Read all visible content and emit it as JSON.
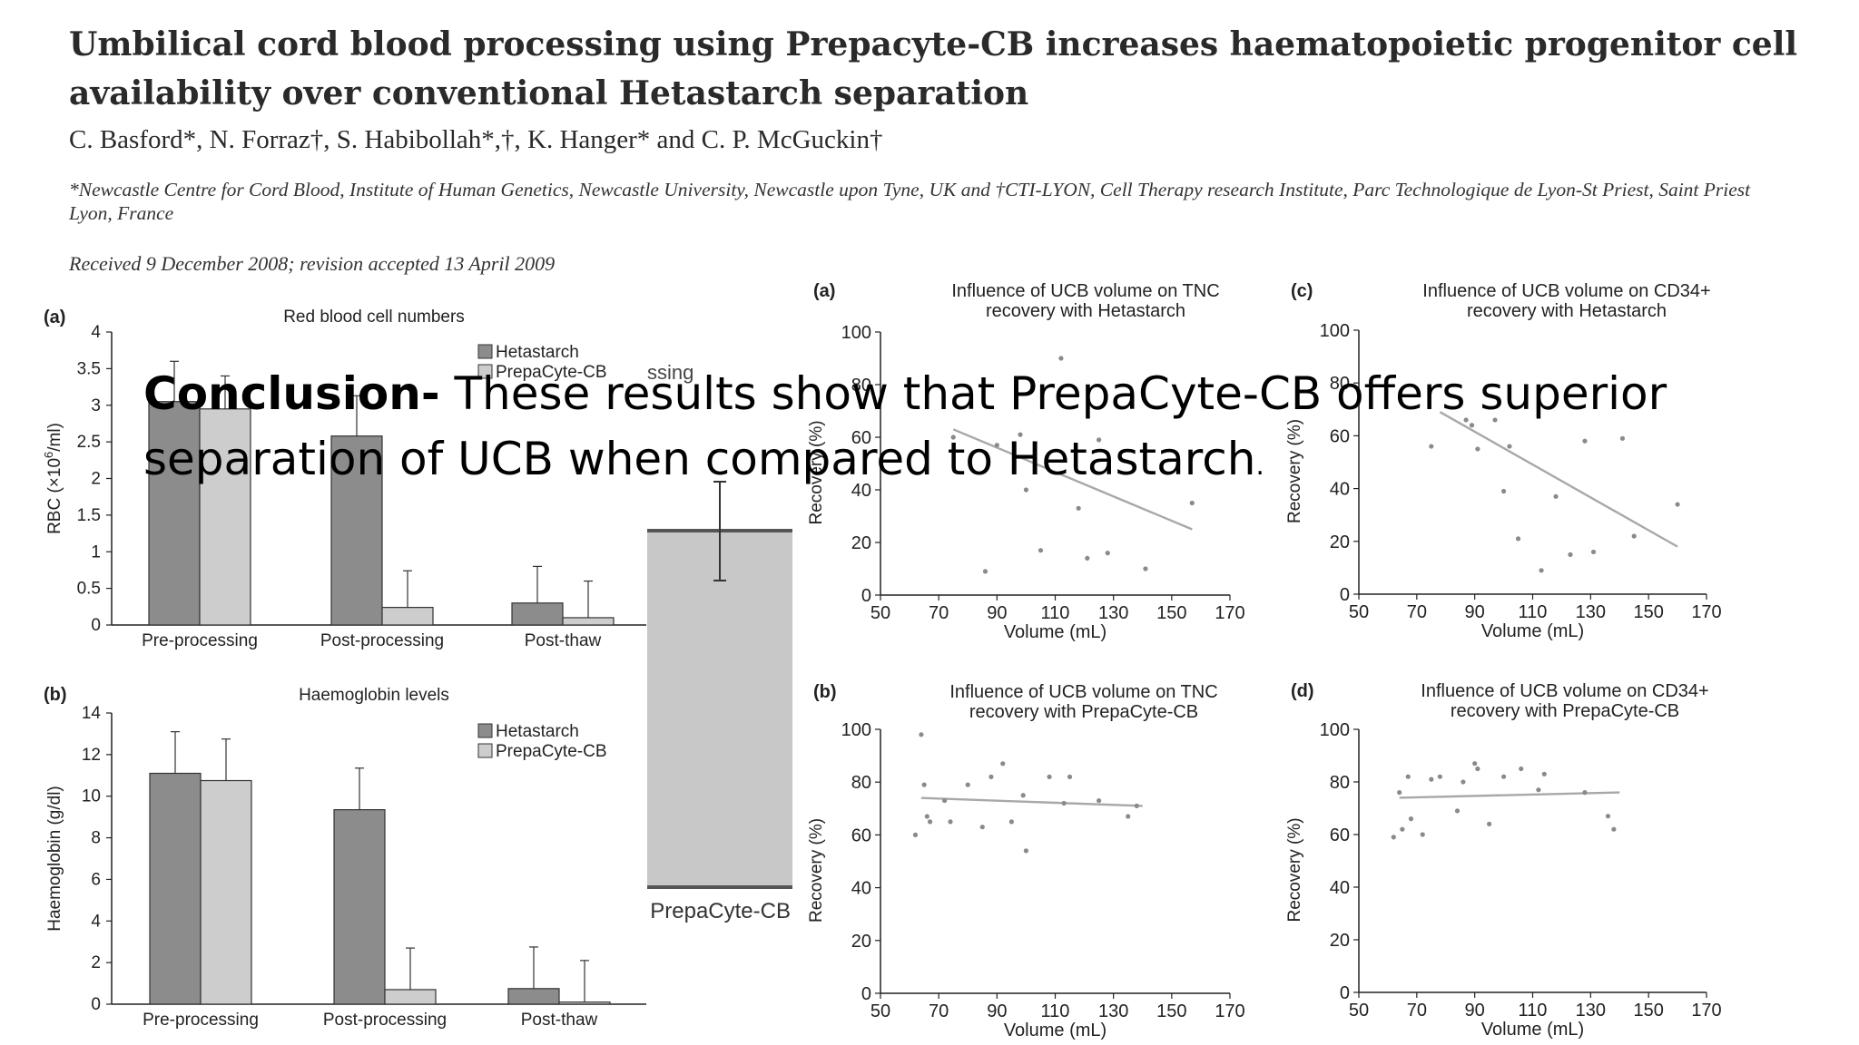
{
  "paper": {
    "title": "Umbilical cord blood processing using Prepacyte-CB increases haematopoietic progenitor cell availability over conventional Hetastarch separation",
    "authors": "C. Basford*, N. Forraz†, S. Habibollah*,†, K. Hanger* and C. P. McGuckin†",
    "affiliation": "*Newcastle Centre for Cord Blood, Institute of Human Genetics, Newcastle University, Newcastle upon Tyne, UK and †CTI-LYON, Cell Therapy research Institute, Parc Technologique de Lyon-St Priest, Saint Priest Lyon, France",
    "received": "Received 9 December 2008; revision accepted 13 April 2009"
  },
  "conclusion": {
    "lead": "Conclusion-",
    "text": " These results show that PrepaCyte-CB offers superior separation of UCB when compared to Hetastarch",
    "end": "."
  },
  "partial": {
    "behind_text": "ssing",
    "category": "PrepaCyte-CB",
    "colors": {
      "bar": "#c8c8c8",
      "line": "#555555"
    }
  },
  "chart_data": [
    {
      "type": "bar",
      "panel": "(a)",
      "title": "Red blood cell numbers",
      "ylabel": "RBC (×10⁶/ml)",
      "ylabel_main": "RBC (×10",
      "ylabel_sup": "6",
      "ylabel_end": "/ml)",
      "ylim": [
        0,
        4
      ],
      "yticks": [
        "0",
        "0.5",
        "1",
        "1.5",
        "2",
        "2.5",
        "3",
        "3.5",
        "4"
      ],
      "categories": [
        "Pre-processing",
        "Post-processing",
        "Post-thaw"
      ],
      "series": [
        {
          "name": "Hetastarch",
          "color": "#8c8c8c",
          "values": [
            3.05,
            2.58,
            0.3
          ],
          "errors": [
            0.55,
            0.55,
            0.5
          ]
        },
        {
          "name": "PrepaCyte-CB",
          "color": "#cdcdcd",
          "values": [
            2.95,
            0.24,
            0.1
          ],
          "errors": [
            0.45,
            0.5,
            0.5
          ]
        }
      ]
    },
    {
      "type": "bar",
      "panel": "(b)",
      "title": "Haemoglobin levels",
      "ylabel": "Haemoglobin (g/dl)",
      "ylim": [
        0,
        14
      ],
      "yticks": [
        "0",
        "2",
        "4",
        "6",
        "8",
        "10",
        "12",
        "14"
      ],
      "categories": [
        "Pre-processing",
        "Post-processing",
        "Post-thaw"
      ],
      "series": [
        {
          "name": "Hetastarch",
          "color": "#8c8c8c",
          "values": [
            11.1,
            9.35,
            0.75
          ],
          "errors": [
            2.0,
            2.0,
            2.0
          ]
        },
        {
          "name": "PrepaCyte-CB",
          "color": "#cdcdcd",
          "values": [
            10.75,
            0.7,
            0.1
          ],
          "errors": [
            2.0,
            2.0,
            2.0
          ]
        }
      ]
    },
    {
      "type": "scatter",
      "panel": "(a)",
      "title_lines": [
        "Influence of UCB volume on TNC",
        "recovery with Hetastarch"
      ],
      "xlabel": "Volume (mL)",
      "ylabel": "Recovery (%)",
      "xlim": [
        50,
        170
      ],
      "ylim": [
        0,
        100
      ],
      "xticks": [
        "50",
        "70",
        "90",
        "110",
        "130",
        "150",
        "170"
      ],
      "yticks": [
        "0",
        "20",
        "40",
        "60",
        "80",
        "100"
      ],
      "points": [
        [
          75,
          60
        ],
        [
          86,
          9
        ],
        [
          90,
          57
        ],
        [
          98,
          61
        ],
        [
          100,
          40
        ],
        [
          105,
          17
        ],
        [
          112,
          90
        ],
        [
          118,
          33
        ],
        [
          121,
          14
        ],
        [
          125,
          59
        ],
        [
          128,
          16
        ],
        [
          141,
          10
        ],
        [
          157,
          35
        ]
      ],
      "trend": [
        [
          75,
          63
        ],
        [
          157,
          25
        ]
      ]
    },
    {
      "type": "scatter",
      "panel": "(c)",
      "title_lines": [
        "Influence of UCB volume on CD34+",
        "recovery with Hetastarch"
      ],
      "xlabel": "Volume (mL)",
      "ylabel": "Recovery (%)",
      "xlim": [
        50,
        170
      ],
      "ylim": [
        0,
        100
      ],
      "xticks": [
        "50",
        "70",
        "90",
        "110",
        "130",
        "150",
        "170"
      ],
      "yticks": [
        "0",
        "20",
        "40",
        "60",
        "80",
        "100"
      ],
      "points": [
        [
          75,
          56
        ],
        [
          87,
          66
        ],
        [
          89,
          64
        ],
        [
          91,
          55
        ],
        [
          97,
          66
        ],
        [
          100,
          39
        ],
        [
          102,
          56
        ],
        [
          105,
          21
        ],
        [
          113,
          9
        ],
        [
          118,
          37
        ],
        [
          123,
          15
        ],
        [
          128,
          58
        ],
        [
          131,
          16
        ],
        [
          141,
          59
        ],
        [
          145,
          22
        ],
        [
          160,
          34
        ]
      ],
      "trend": [
        [
          78,
          69
        ],
        [
          160,
          18
        ]
      ]
    },
    {
      "type": "scatter",
      "panel": "(b)",
      "title_lines": [
        "Influence of UCB volume on TNC",
        "recovery with PrepaCyte-CB"
      ],
      "xlabel": "Volume (mL)",
      "ylabel": "Recovery (%)",
      "xlim": [
        50,
        170
      ],
      "ylim": [
        0,
        100
      ],
      "xticks": [
        "50",
        "70",
        "90",
        "110",
        "130",
        "150",
        "170"
      ],
      "yticks": [
        "0",
        "20",
        "40",
        "60",
        "80",
        "100"
      ],
      "points": [
        [
          62,
          60
        ],
        [
          64,
          98
        ],
        [
          65,
          79
        ],
        [
          66,
          67
        ],
        [
          67,
          65
        ],
        [
          72,
          73
        ],
        [
          74,
          65
        ],
        [
          80,
          79
        ],
        [
          85,
          63
        ],
        [
          88,
          82
        ],
        [
          92,
          87
        ],
        [
          95,
          65
        ],
        [
          99,
          75
        ],
        [
          100,
          54
        ],
        [
          108,
          82
        ],
        [
          113,
          72
        ],
        [
          115,
          82
        ],
        [
          125,
          73
        ],
        [
          135,
          67
        ],
        [
          138,
          71
        ]
      ],
      "trend": [
        [
          64,
          74
        ],
        [
          140,
          71
        ]
      ]
    },
    {
      "type": "scatter",
      "panel": "(d)",
      "title_lines": [
        "Influence of UCB volume on CD34+",
        "recovery with PrepaCyte-CB"
      ],
      "xlabel": "Volume (mL)",
      "ylabel": "Recovery (%)",
      "xlim": [
        50,
        170
      ],
      "ylim": [
        0,
        100
      ],
      "xticks": [
        "50",
        "70",
        "90",
        "110",
        "130",
        "150",
        "170"
      ],
      "yticks": [
        "0",
        "20",
        "40",
        "60",
        "80",
        "100"
      ],
      "points": [
        [
          62,
          59
        ],
        [
          64,
          76
        ],
        [
          65,
          62
        ],
        [
          67,
          82
        ],
        [
          68,
          66
        ],
        [
          72,
          60
        ],
        [
          75,
          81
        ],
        [
          78,
          82
        ],
        [
          84,
          69
        ],
        [
          86,
          80
        ],
        [
          90,
          87
        ],
        [
          91,
          85
        ],
        [
          95,
          64
        ],
        [
          100,
          82
        ],
        [
          106,
          85
        ],
        [
          112,
          77
        ],
        [
          114,
          83
        ],
        [
          128,
          76
        ],
        [
          136,
          67
        ],
        [
          138,
          62
        ]
      ],
      "trend": [
        [
          64,
          74
        ],
        [
          140,
          76
        ]
      ]
    }
  ]
}
